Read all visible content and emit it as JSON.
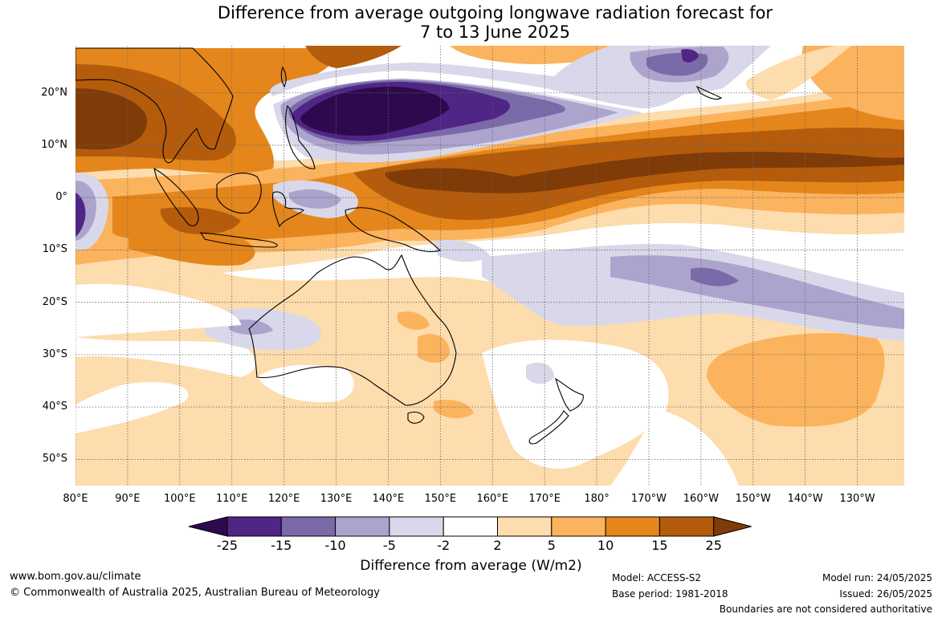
{
  "title": {
    "line1": "Difference from average outgoing longwave radiation forecast for",
    "line2": "7 to 13 June 2025"
  },
  "map": {
    "lat_labels": [
      "20°N",
      "10°N",
      "0°",
      "10°S",
      "20°S",
      "30°S",
      "40°S",
      "50°S"
    ],
    "lat_values": [
      20,
      10,
      0,
      -10,
      -20,
      -30,
      -40,
      -50
    ],
    "lon_labels": [
      "80°E",
      "90°E",
      "100°E",
      "110°E",
      "120°E",
      "130°E",
      "140°E",
      "150°E",
      "160°E",
      "170°E",
      "180°",
      "170°W",
      "160°W",
      "150°W",
      "140°W",
      "130°W"
    ],
    "lon_values": [
      80,
      90,
      100,
      110,
      120,
      130,
      140,
      150,
      160,
      170,
      180,
      190,
      200,
      210,
      220,
      230
    ],
    "extent": {
      "lon_min": 80,
      "lon_max": 239,
      "lat_min": -55,
      "lat_max": 29
    }
  },
  "colorbar": {
    "ticks": [
      "-25",
      "-15",
      "-10",
      "-5",
      "-2",
      "2",
      "5",
      "10",
      "15",
      "25"
    ],
    "colors": [
      "#2d0a4e",
      "#4f2585",
      "#7b6aa8",
      "#aca4cd",
      "#d9d8ea",
      "#ffffff",
      "#fddcad",
      "#fbb35d",
      "#e4861b",
      "#b45c0c",
      "#7f3b08"
    ],
    "label": "Difference from average (W/m2)"
  },
  "footer": {
    "url": "www.bom.gov.au/climate",
    "copyright": "© Commonwealth of Australia 2025, Australian Bureau of Meteorology",
    "model": "Model: ACCESS-S2",
    "base_period": "Base period: 1981-2018",
    "model_run": "Model run: 24/05/2025",
    "issued": "Issued: 26/05/2025",
    "disclaimer": "Boundaries are not considered authoritative"
  }
}
